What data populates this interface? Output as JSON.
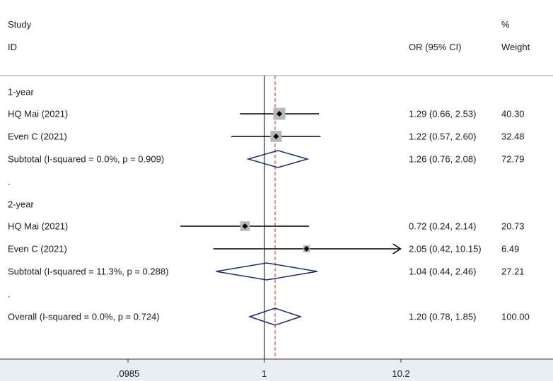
{
  "chart_data": {
    "type": "forest",
    "columns": {
      "study_top": "Study",
      "study_bottom": "ID",
      "ci_header": "OR (95% CI)",
      "weight_top": "%",
      "weight_bottom": "Weight"
    },
    "x_scale": "log",
    "xlim": [
      0.0985,
      10.2
    ],
    "x_ticks": [
      {
        "value": 0.0985,
        "label": ".0985"
      },
      {
        "value": 1,
        "label": "1"
      },
      {
        "value": 10.2,
        "label": "10.2"
      }
    ],
    "null_line": 1,
    "overall_line": 1.2,
    "rows": [
      {
        "kind": "group",
        "label": "1-year"
      },
      {
        "kind": "study",
        "label": "HQ Mai (2021)",
        "or": 1.29,
        "lo": 0.66,
        "hi": 2.53,
        "ci_text": "1.29 (0.66, 2.53)",
        "weight": 40.3,
        "weight_text": "40.30"
      },
      {
        "kind": "study",
        "label": "Even C (2021)",
        "or": 1.22,
        "lo": 0.57,
        "hi": 2.6,
        "ci_text": "1.22 (0.57, 2.60)",
        "weight": 32.48,
        "weight_text": "32.48"
      },
      {
        "kind": "subtotal",
        "label": "Subtotal  (I-squared = 0.0%, p = 0.909)",
        "or": 1.26,
        "lo": 0.76,
        "hi": 2.08,
        "ci_text": "1.26 (0.76, 2.08)",
        "weight_text": "72.79"
      },
      {
        "kind": "dot",
        "label": "."
      },
      {
        "kind": "group",
        "label": "2-year"
      },
      {
        "kind": "study",
        "label": "HQ Mai (2021)",
        "or": 0.72,
        "lo": 0.24,
        "hi": 2.14,
        "ci_text": "0.72 (0.24, 2.14)",
        "weight": 20.73,
        "weight_text": "20.73"
      },
      {
        "kind": "study",
        "label": "Even C (2021)",
        "or": 2.05,
        "lo": 0.42,
        "hi": 10.15,
        "ci_text": "2.05 (0.42, 10.15)",
        "weight": 6.49,
        "weight_text": "6.49",
        "arrow_right": true
      },
      {
        "kind": "subtotal",
        "label": "Subtotal  (I-squared = 11.3%, p = 0.288)",
        "or": 1.04,
        "lo": 0.44,
        "hi": 2.46,
        "ci_text": "1.04 (0.44, 2.46)",
        "weight_text": "27.21"
      },
      {
        "kind": "dot",
        "label": "."
      },
      {
        "kind": "overall",
        "label": "Overall  (I-squared = 0.0%, p = 0.724)",
        "or": 1.2,
        "lo": 0.78,
        "hi": 1.85,
        "ci_text": "1.20 (0.78, 1.85)",
        "weight_text": "100.00"
      }
    ],
    "colors": {
      "diamond": "#1f2a6e",
      "overall_line": "#cc2222",
      "box": "#b8b8b8",
      "axis_band": "#e8eef4"
    }
  }
}
